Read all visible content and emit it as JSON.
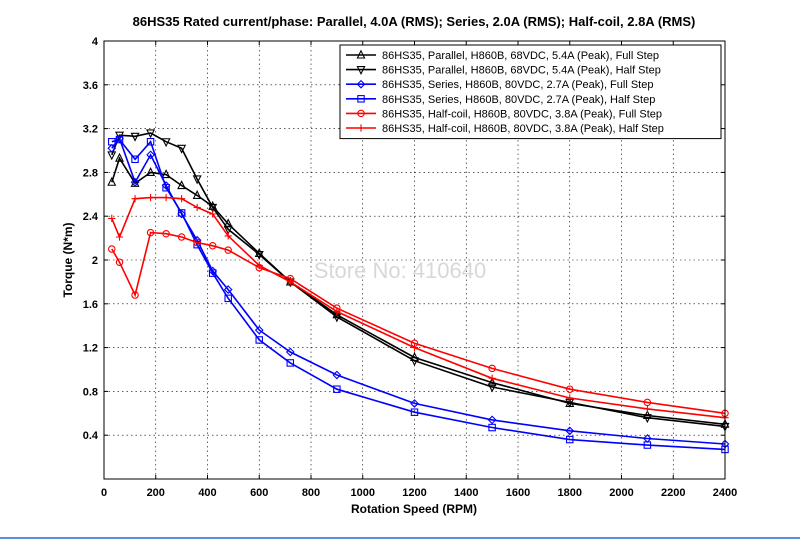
{
  "chart_data": {
    "type": "line",
    "title": "86HS35 Rated current/phase: Parallel, 4.0A (RMS); Series, 2.0A (RMS); Half-coil, 2.8A (RMS)",
    "xlabel": "Rotation Speed (RPM)",
    "ylabel": "Torque (N*m)",
    "xlim": [
      0,
      2400
    ],
    "ylim": [
      0,
      4
    ],
    "xticks": [
      0,
      200,
      400,
      600,
      800,
      1000,
      1200,
      1400,
      1600,
      1800,
      2000,
      2200,
      2400
    ],
    "yticks": [
      0.4,
      0.8,
      1.2,
      1.6,
      2,
      2.4,
      2.8,
      3.2,
      3.6,
      4
    ],
    "xtick_labels": [
      "0",
      "200",
      "400",
      "600",
      "800",
      "1000",
      "1200",
      "1400",
      "1600",
      "1800",
      "2000",
      "2200",
      "2400"
    ],
    "ytick_labels": [
      "0.4",
      "0.8",
      "1.2",
      "1.6",
      "2",
      "2.4",
      "2.8",
      "3.2",
      "3.6",
      "4"
    ],
    "grid": true,
    "legend_position": "top-right",
    "watermark": "Store No: 410640",
    "series": [
      {
        "name": "86HS35, Parallel, H860B, 68VDC, 5.4A (Peak), Full Step",
        "color": "#000000",
        "marker": "triangle-up",
        "x": [
          30,
          60,
          120,
          180,
          240,
          300,
          360,
          420,
          480,
          600,
          720,
          900,
          1200,
          1500,
          1800,
          2100,
          2400
        ],
        "y": [
          2.71,
          2.93,
          2.7,
          2.8,
          2.78,
          2.68,
          2.59,
          2.49,
          2.33,
          2.06,
          1.8,
          1.5,
          1.11,
          0.88,
          0.69,
          0.58,
          0.5
        ]
      },
      {
        "name": "86HS35, Parallel, H860B, 68VDC, 5.4A (Peak), Half Step",
        "color": "#000000",
        "marker": "triangle-down",
        "x": [
          30,
          60,
          120,
          180,
          240,
          300,
          360,
          420,
          480,
          600,
          720,
          900,
          1200,
          1500,
          1800,
          2100,
          2400
        ],
        "y": [
          2.96,
          3.14,
          3.13,
          3.16,
          3.08,
          3.02,
          2.74,
          2.48,
          2.28,
          2.05,
          1.8,
          1.48,
          1.08,
          0.84,
          0.7,
          0.56,
          0.48
        ]
      },
      {
        "name": "86HS35, Series, H860B, 80VDC, 2.7A (Peak), Full Step",
        "color": "#0000ff",
        "marker": "diamond",
        "x": [
          30,
          60,
          120,
          180,
          240,
          300,
          360,
          420,
          480,
          600,
          720,
          900,
          1200,
          1500,
          1800,
          2100,
          2400
        ],
        "y": [
          3.02,
          3.11,
          2.71,
          2.96,
          2.68,
          2.42,
          2.18,
          1.9,
          1.73,
          1.36,
          1.16,
          0.95,
          0.69,
          0.54,
          0.44,
          0.37,
          0.32
        ]
      },
      {
        "name": "86HS35, Series, H860B, 80VDC, 2.7A (Peak), Half Step",
        "color": "#0000ff",
        "marker": "square",
        "x": [
          30,
          60,
          120,
          180,
          240,
          300,
          360,
          420,
          480,
          600,
          720,
          900,
          1200,
          1500,
          1800,
          2100,
          2400
        ],
        "y": [
          3.08,
          3.1,
          2.92,
          3.08,
          2.66,
          2.43,
          2.14,
          1.88,
          1.65,
          1.27,
          1.06,
          0.82,
          0.61,
          0.47,
          0.36,
          0.31,
          0.27
        ]
      },
      {
        "name": "86HS35, Half-coil, H860B, 80VDC, 3.8A (Peak), Full Step",
        "color": "#ff0000",
        "marker": "circle",
        "x": [
          30,
          60,
          120,
          180,
          240,
          300,
          360,
          420,
          480,
          600,
          720,
          900,
          1200,
          1500,
          1800,
          2100,
          2400
        ],
        "y": [
          2.1,
          1.98,
          1.68,
          2.25,
          2.24,
          2.21,
          2.16,
          2.13,
          2.09,
          1.93,
          1.83,
          1.56,
          1.24,
          1.01,
          0.82,
          0.7,
          0.6
        ]
      },
      {
        "name": "86HS35, Half-coil, H860B, 80VDC, 3.8A (Peak), Half Step",
        "color": "#ff0000",
        "marker": "plus",
        "x": [
          30,
          60,
          120,
          180,
          240,
          300,
          360,
          420,
          480,
          600,
          720,
          900,
          1200,
          1500,
          1800,
          2100,
          2400
        ],
        "y": [
          2.38,
          2.21,
          2.56,
          2.57,
          2.57,
          2.56,
          2.48,
          2.42,
          2.22,
          1.95,
          1.8,
          1.53,
          1.2,
          0.92,
          0.74,
          0.64,
          0.56
        ]
      }
    ]
  }
}
